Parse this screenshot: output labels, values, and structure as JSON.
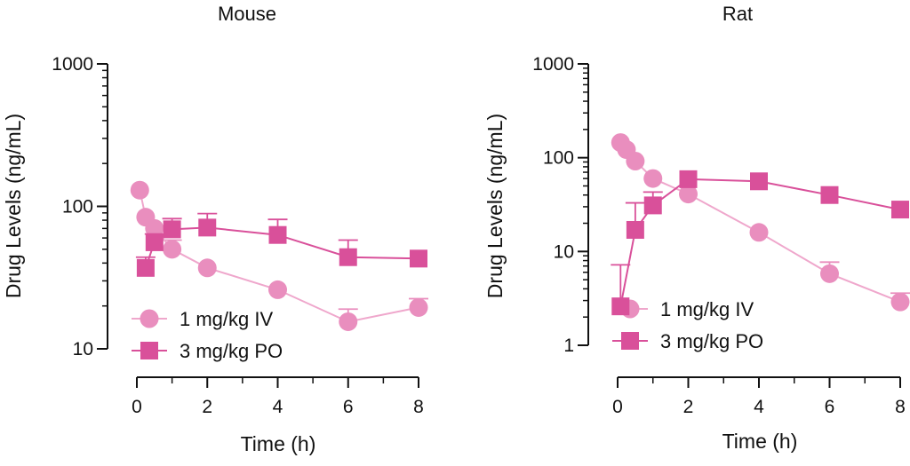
{
  "colors": {
    "iv": "#E98EBE",
    "iv_line": "#EFA7CC",
    "po": "#D9509A",
    "axis": "#111111"
  },
  "chart_data": [
    {
      "type": "line",
      "title": "Mouse",
      "xlabel": "Time (h)",
      "ylabel": "Drug  Levels (ng/mL)",
      "yscale": "log",
      "xlim": [
        0,
        8
      ],
      "ylim": [
        10,
        1000
      ],
      "xticks": [
        "0",
        "2",
        "4",
        "6",
        "8"
      ],
      "yticks": [
        "10",
        "100",
        "1000"
      ],
      "legend_position": "bottom-left",
      "series": [
        {
          "name": "1 mg/kg IV",
          "marker": "circle",
          "x": [
            0.083,
            0.25,
            0.5,
            1,
            2,
            4,
            6,
            8
          ],
          "y": [
            130,
            84,
            70,
            50,
            37,
            26,
            15.5,
            19.5
          ],
          "err": [
            null,
            null,
            null,
            8,
            null,
            null,
            3.5,
            3
          ]
        },
        {
          "name": "3 mg/kg PO",
          "marker": "square",
          "x": [
            0.25,
            0.5,
            1,
            2,
            4,
            6,
            8
          ],
          "y": [
            37,
            56,
            69,
            71,
            63,
            44,
            43
          ],
          "err": [
            7,
            8,
            13,
            18,
            18,
            14,
            null
          ]
        }
      ]
    },
    {
      "type": "line",
      "title": "Rat",
      "xlabel": "Time (h)",
      "ylabel": "Drug  Levels (ng/mL)",
      "yscale": "log",
      "xlim": [
        0,
        8
      ],
      "ylim": [
        1,
        1000
      ],
      "xticks": [
        "0",
        "2",
        "4",
        "6",
        "8"
      ],
      "yticks": [
        "1",
        "10",
        "100",
        "1000"
      ],
      "legend_position": "bottom-left",
      "series": [
        {
          "name": "1 mg/kg IV",
          "marker": "circle",
          "x": [
            0.083,
            0.25,
            0.5,
            1,
            2,
            4,
            6,
            8
          ],
          "y": [
            145,
            122,
            92,
            60,
            41,
            16,
            5.8,
            2.9
          ],
          "err": [
            null,
            null,
            null,
            null,
            null,
            null,
            1.9,
            0.7
          ]
        },
        {
          "name": "3 mg/kg PO",
          "marker": "square",
          "x": [
            0.083,
            0.5,
            1,
            2,
            4,
            6,
            8
          ],
          "y": [
            2.6,
            17,
            31,
            59,
            56,
            40,
            28
          ],
          "err": [
            4.6,
            16,
            12,
            null,
            null,
            null,
            null
          ]
        }
      ]
    }
  ]
}
